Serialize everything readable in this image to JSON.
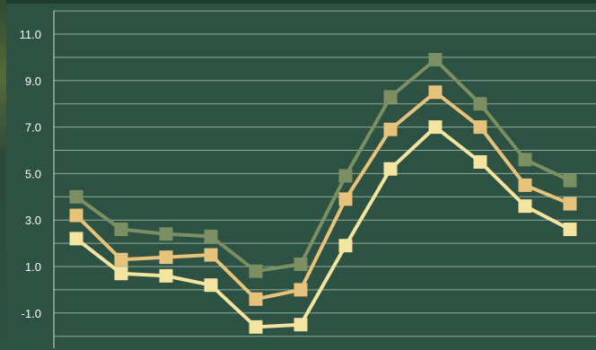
{
  "chart_data": {
    "type": "line",
    "title": "",
    "xlabel": "",
    "ylabel": "",
    "ylim": [
      -2.0,
      12.0
    ],
    "yticks": [
      11.0,
      9.0,
      7.0,
      5.0,
      3.0,
      1.0,
      -1.0
    ],
    "ytick_labels": [
      "11.0",
      "9.0",
      "7.0",
      "5.0",
      "3.0",
      "1.0",
      "-1.0"
    ],
    "grid": true,
    "x": [
      1,
      2,
      3,
      4,
      5,
      6,
      7,
      8,
      9,
      10,
      11,
      12
    ],
    "series": [
      {
        "values": [
          4.0,
          2.6,
          2.4,
          2.3,
          0.8,
          1.1,
          4.9,
          8.3,
          9.9,
          8.0,
          5.6,
          4.7
        ],
        "color": "#7b8f62"
      },
      {
        "values": [
          3.2,
          1.3,
          1.4,
          1.5,
          -0.4,
          0.0,
          3.9,
          6.9,
          8.5,
          7.0,
          4.5,
          3.7
        ],
        "color": "#e6c27a"
      },
      {
        "values": [
          2.2,
          0.7,
          0.6,
          0.2,
          -1.6,
          -1.5,
          1.9,
          5.2,
          7.0,
          5.5,
          3.6,
          2.6
        ],
        "color": "#f3e4a0"
      }
    ],
    "colors": {
      "background": "#2d5142",
      "gridline": "#9fbcae",
      "axis": "#cfe0d6",
      "text": "#ffffff"
    }
  }
}
